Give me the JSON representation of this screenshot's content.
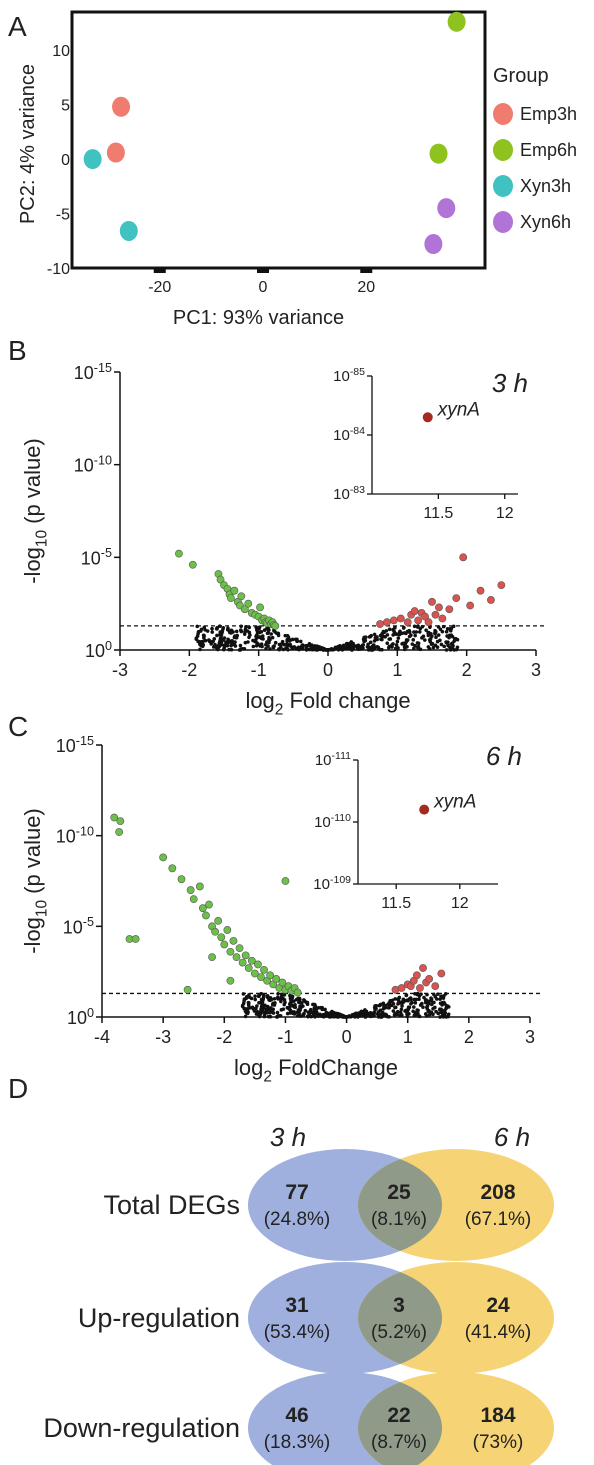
{
  "panels": {
    "A": "A",
    "B": "B",
    "C": "C",
    "D": "D"
  },
  "chart_data": [
    {
      "id": "A",
      "type": "scatter",
      "xlabel": "PC1: 93% variance",
      "ylabel": "PC2: 4% variance",
      "xlim": [
        -37,
        43
      ],
      "ylim": [
        -10,
        13.5
      ],
      "xticks": [
        -20,
        0,
        20
      ],
      "yticks": [
        10,
        5,
        0,
        -5,
        -10
      ],
      "grid": false,
      "legend_title": "Group",
      "legend_placement": "right",
      "series": [
        {
          "name": "Emp3h",
          "color": "#f07b6f",
          "points": [
            [
              -27.5,
              4.8
            ],
            [
              -28.5,
              0.6
            ]
          ]
        },
        {
          "name": "Emp6h",
          "color": "#8ec21f",
          "points": [
            [
              37.5,
              12.6
            ],
            [
              34.0,
              0.5
            ]
          ]
        },
        {
          "name": "Xyn3h",
          "color": "#3fc2c0",
          "points": [
            [
              -33.0,
              0.0
            ],
            [
              -26.0,
              -6.6
            ]
          ]
        },
        {
          "name": "Xyn6h",
          "color": "#b173d6",
          "points": [
            [
              35.5,
              -4.5
            ],
            [
              33.0,
              -7.8
            ]
          ]
        }
      ]
    },
    {
      "id": "B",
      "type": "scatter",
      "title": "3 h",
      "xlabel": "log2 Fold change",
      "ylabel": "-log10 (p value)",
      "xlim": [
        -3,
        3
      ],
      "xticks": [
        -3,
        -2,
        -1,
        0,
        1,
        2,
        3
      ],
      "ylim": [
        0,
        15
      ],
      "yticks": [
        0,
        5,
        10,
        15
      ],
      "ytick_labels": [
        "10^0",
        "10^-5",
        "10^-10",
        "10^-15"
      ],
      "threshold_y": 1.3,
      "grid": false,
      "series": [
        {
          "name": "down",
          "color": "#6cc04a",
          "x": [
            -2.15,
            -1.95,
            -1.58,
            -1.55,
            -1.5,
            -1.45,
            -1.42,
            -1.4,
            -1.35,
            -1.3,
            -1.27,
            -1.25,
            -1.2,
            -1.15,
            -1.1,
            -1.05,
            -1.0,
            -0.98,
            -0.95,
            -0.92,
            -0.9,
            -0.88,
            -0.85,
            -0.82,
            -0.8,
            -0.78,
            -0.76
          ],
          "y": [
            5.2,
            4.6,
            4.1,
            3.8,
            3.5,
            3.3,
            3.0,
            2.8,
            3.2,
            2.6,
            2.4,
            2.9,
            2.2,
            2.5,
            2.0,
            1.9,
            1.8,
            2.3,
            1.6,
            1.7,
            1.5,
            1.45,
            1.6,
            1.4,
            1.5,
            1.35,
            1.3
          ]
        },
        {
          "name": "up",
          "color": "#d9534f",
          "x": [
            0.75,
            0.85,
            0.95,
            1.05,
            1.15,
            1.2,
            1.25,
            1.3,
            1.35,
            1.4,
            1.45,
            1.5,
            1.55,
            1.6,
            1.65,
            1.75,
            1.85,
            1.95,
            2.05,
            2.2,
            2.35,
            2.5
          ],
          "y": [
            1.4,
            1.5,
            1.6,
            1.7,
            1.5,
            1.9,
            2.1,
            1.6,
            2.0,
            1.8,
            1.5,
            2.6,
            1.9,
            2.3,
            1.7,
            2.2,
            2.8,
            5.0,
            2.4,
            3.2,
            2.7,
            3.5
          ]
        }
      ],
      "inset": {
        "xlim": [
          11.0,
          12.1
        ],
        "xticks": [
          11.5,
          12.0
        ],
        "yticks": [
          -85,
          -84,
          -83
        ],
        "ytick_labels": [
          "10^-85",
          "10^-84",
          "10^-83"
        ],
        "point": {
          "x": 11.42,
          "y": 84.3,
          "label": "xynA",
          "color": "#a52a1f"
        }
      }
    },
    {
      "id": "C",
      "type": "scatter",
      "title": "6 h",
      "xlabel": "log2 FoldChange",
      "ylabel": "-log10 (p value)",
      "xlim": [
        -4,
        3
      ],
      "xticks": [
        -4,
        -3,
        -2,
        -1,
        0,
        1,
        2,
        3
      ],
      "ylim": [
        0,
        15
      ],
      "yticks": [
        0,
        5,
        10,
        15
      ],
      "ytick_labels": [
        "10^0",
        "10^-5",
        "10^-10",
        "10^-15"
      ],
      "threshold_y": 1.3,
      "grid": false,
      "series": [
        {
          "name": "down",
          "color": "#6cc04a",
          "x": [
            -3.8,
            -3.7,
            -3.72,
            -3.55,
            -3.45,
            -3.0,
            -2.85,
            -2.7,
            -2.55,
            -2.5,
            -2.4,
            -2.35,
            -2.3,
            -2.25,
            -2.2,
            -2.15,
            -2.1,
            -2.05,
            -2.0,
            -1.95,
            -1.9,
            -1.85,
            -1.8,
            -1.75,
            -1.7,
            -1.65,
            -1.6,
            -1.55,
            -1.5,
            -1.45,
            -1.4,
            -1.35,
            -1.3,
            -1.25,
            -1.2,
            -1.15,
            -1.1,
            -1.05,
            -1.0,
            -0.95,
            -0.9,
            -0.85,
            -0.8,
            -1.0,
            -1.9,
            -2.2,
            -2.6
          ],
          "y": [
            11.0,
            10.8,
            10.2,
            4.3,
            4.3,
            8.8,
            8.2,
            7.6,
            7.0,
            6.5,
            7.2,
            6.0,
            5.6,
            6.2,
            5.0,
            4.7,
            5.3,
            4.4,
            4.0,
            4.8,
            3.6,
            4.2,
            3.3,
            3.8,
            3.0,
            3.4,
            2.7,
            3.1,
            2.4,
            2.9,
            2.2,
            2.6,
            2.0,
            2.3,
            1.8,
            2.1,
            1.6,
            1.9,
            1.5,
            1.7,
            1.45,
            1.6,
            1.35,
            7.5,
            2.0,
            3.3,
            1.5
          ]
        },
        {
          "name": "up",
          "color": "#d9534f",
          "x": [
            0.8,
            0.9,
            1.0,
            1.05,
            1.1,
            1.15,
            1.2,
            1.25,
            1.3,
            1.35,
            1.45,
            1.55
          ],
          "y": [
            1.5,
            1.6,
            1.8,
            1.7,
            2.0,
            2.3,
            1.6,
            2.7,
            1.9,
            2.1,
            1.7,
            2.4
          ]
        }
      ],
      "inset": {
        "xlim": [
          11.2,
          12.3
        ],
        "xticks": [
          11.5,
          12.0
        ],
        "yticks": [
          -111,
          -110,
          -109
        ],
        "ytick_labels": [
          "10^-111",
          "10^-110",
          "10^-109"
        ],
        "point": {
          "x": 11.72,
          "y": 110.2,
          "label": "xynA",
          "color": "#a52a1f"
        }
      }
    }
  ],
  "venn": {
    "col_labels": [
      "3 h",
      "6 h"
    ],
    "colors": {
      "left": "#9fb0df",
      "right": "#f6d475",
      "overlap": "#8f9a89"
    },
    "rows": [
      {
        "label": "Total DEGs",
        "left": {
          "count": "77",
          "pct": "(24.8%)"
        },
        "overlap": {
          "count": "25",
          "pct": "(8.1%)"
        },
        "right": {
          "count": "208",
          "pct": "(67.1%)"
        }
      },
      {
        "label": "Up-regulation",
        "left": {
          "count": "31",
          "pct": "(53.4%)"
        },
        "overlap": {
          "count": "3",
          "pct": "(5.2%)"
        },
        "right": {
          "count": "24",
          "pct": "(41.4%)"
        }
      },
      {
        "label": "Down-regulation",
        "left": {
          "count": "46",
          "pct": "(18.3%)"
        },
        "overlap": {
          "count": "22",
          "pct": "(8.7%)"
        },
        "right": {
          "count": "184",
          "pct": "(73%)"
        }
      }
    ]
  }
}
